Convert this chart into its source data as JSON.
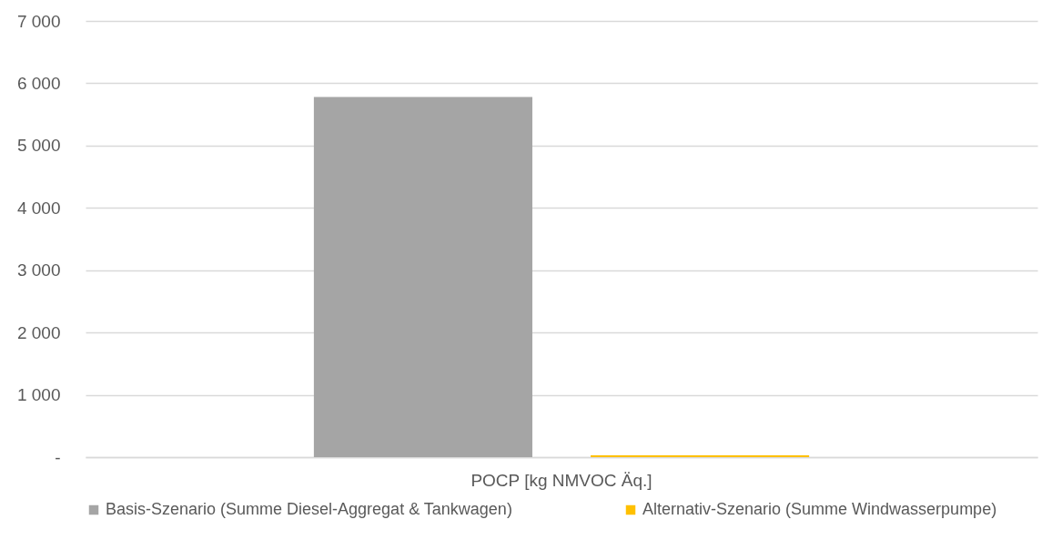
{
  "chart_data": {
    "type": "bar",
    "categories": [
      "POCP [kg NMVOC Äq.]"
    ],
    "series": [
      {
        "name": "Basis-Szenario (Summe Diesel-Aggregat & Tankwagen)",
        "color": "#a5a5a5",
        "values": [
          5780
        ]
      },
      {
        "name": "Alternativ-Szenario (Summe Windwasserpumpe)",
        "color": "#ffc000",
        "values": [
          30
        ]
      }
    ],
    "ylim": [
      0,
      7000
    ],
    "yticks": [
      {
        "value": 0,
        "label": "-"
      },
      {
        "value": 1000,
        "label": "1 000"
      },
      {
        "value": 2000,
        "label": "2 000"
      },
      {
        "value": 3000,
        "label": "3 000"
      },
      {
        "value": 4000,
        "label": "4 000"
      },
      {
        "value": 5000,
        "label": "5 000"
      },
      {
        "value": 6000,
        "label": "6 000"
      },
      {
        "value": 7000,
        "label": "7 000"
      }
    ],
    "grid": "y",
    "legend": "bottom"
  }
}
